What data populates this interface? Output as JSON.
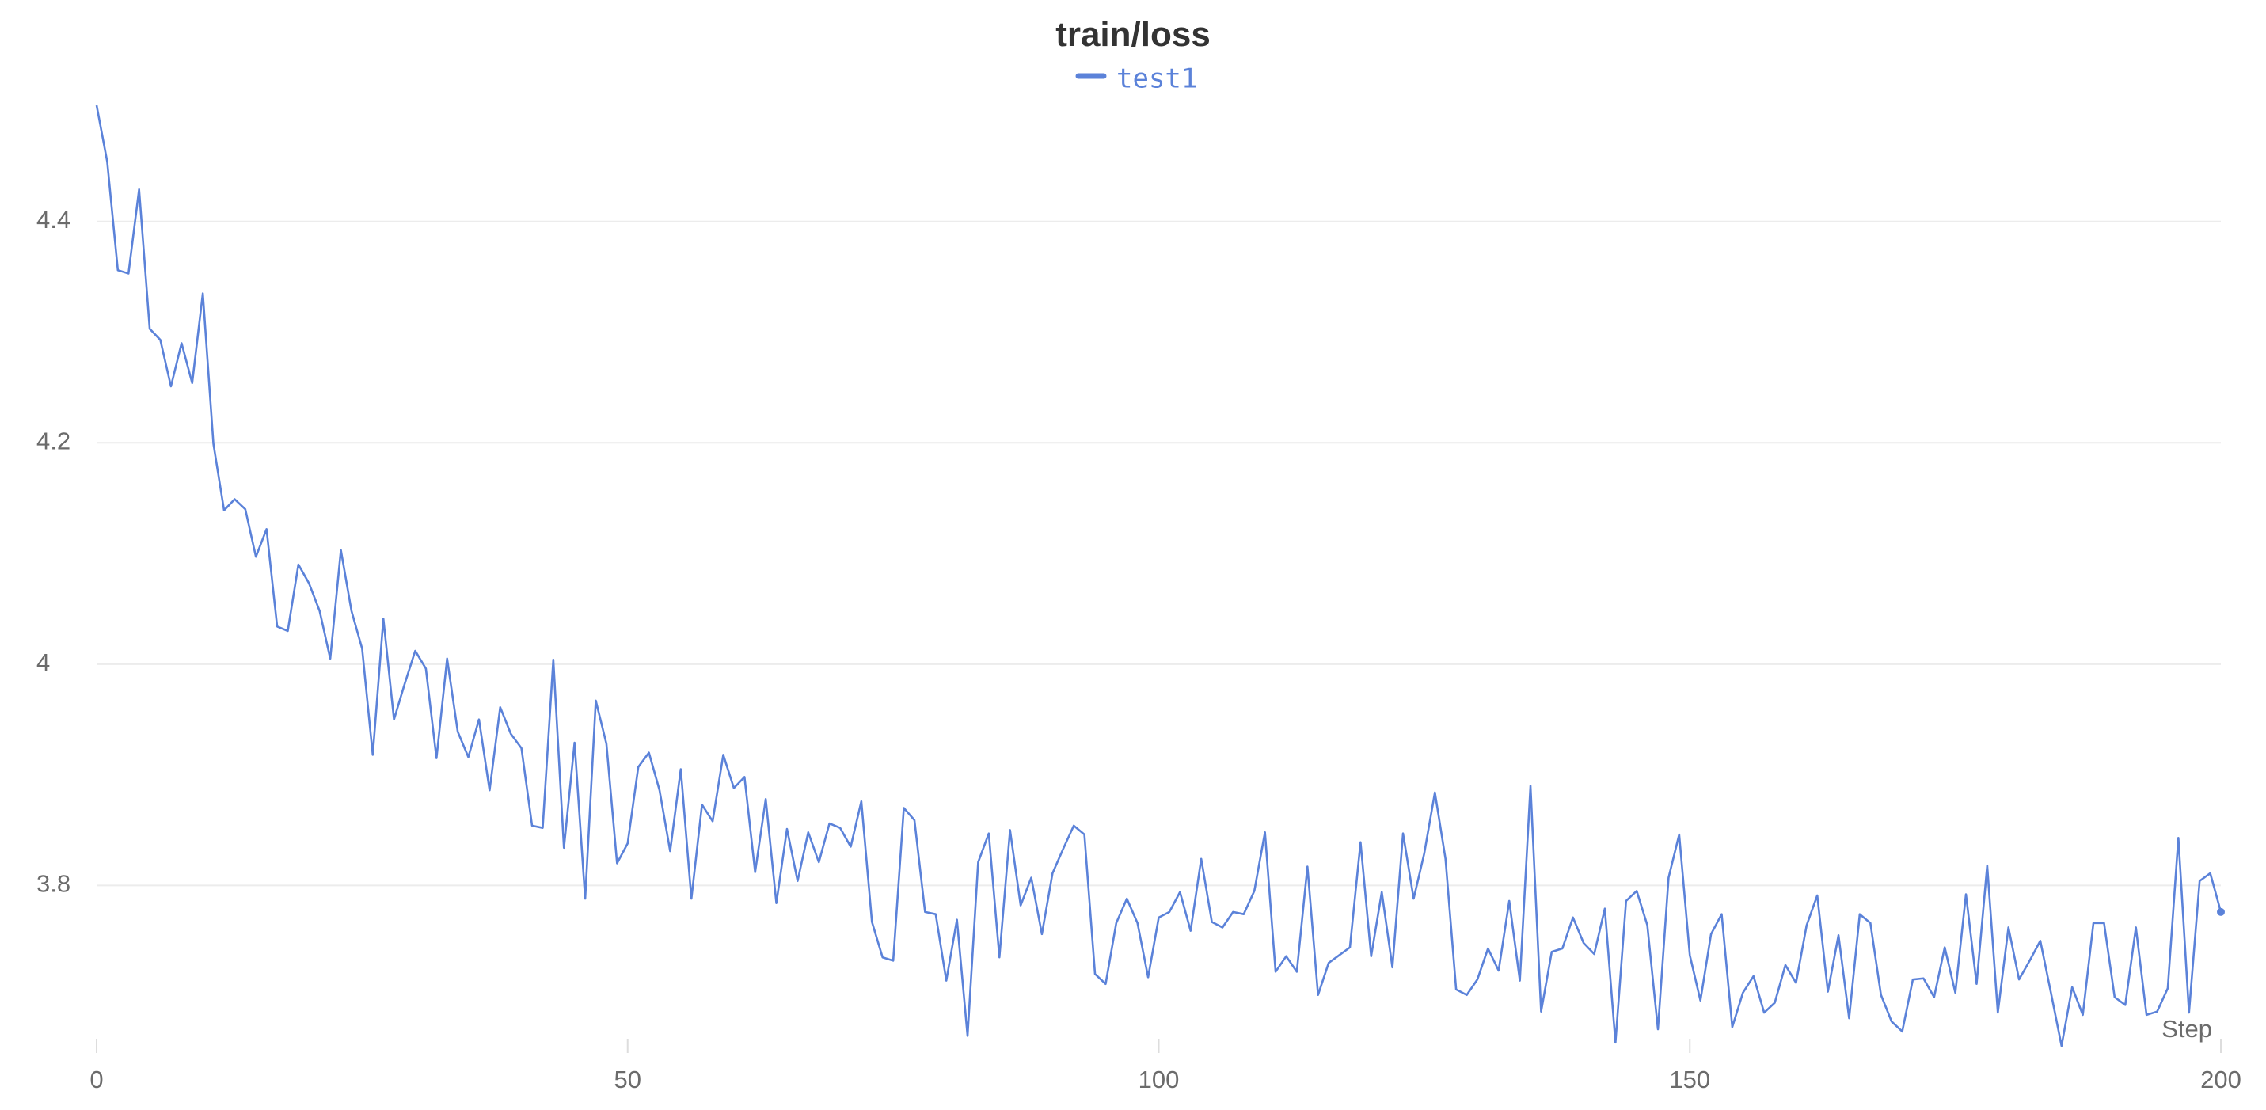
{
  "chart_data": {
    "type": "line",
    "title": "train/loss",
    "x_label": "Step",
    "x": [
      0,
      1,
      2,
      3,
      4,
      5,
      6,
      7,
      8,
      9,
      10,
      11,
      12,
      13,
      14,
      15,
      16,
      17,
      18,
      19,
      20,
      21,
      22,
      23,
      24,
      25,
      26,
      27,
      28,
      29,
      30,
      31,
      32,
      33,
      34,
      35,
      36,
      37,
      38,
      39,
      40,
      41,
      42,
      43,
      44,
      45,
      46,
      47,
      48,
      49,
      50,
      51,
      52,
      53,
      54,
      55,
      56,
      57,
      58,
      59,
      60,
      61,
      62,
      63,
      64,
      65,
      66,
      67,
      68,
      69,
      70,
      71,
      72,
      73,
      74,
      75,
      76,
      77,
      78,
      79,
      80,
      81,
      82,
      83,
      84,
      85,
      86,
      87,
      88,
      89,
      90,
      91,
      92,
      93,
      94,
      95,
      96,
      97,
      98,
      99,
      100,
      101,
      102,
      103,
      104,
      105,
      106,
      107,
      108,
      109,
      110,
      111,
      112,
      113,
      114,
      115,
      116,
      117,
      118,
      119,
      120,
      121,
      122,
      123,
      124,
      125,
      126,
      127,
      128,
      129,
      130,
      131,
      132,
      133,
      134,
      135,
      136,
      137,
      138,
      139,
      140,
      141,
      142,
      143,
      144,
      145,
      146,
      147,
      148,
      149,
      150,
      151,
      152,
      153,
      154,
      155,
      156,
      157,
      158,
      159,
      160,
      161,
      162,
      163,
      164,
      165,
      166,
      167,
      168,
      169,
      170,
      171,
      172,
      173,
      174,
      175,
      176,
      177,
      178,
      179,
      180,
      181,
      182,
      183,
      184,
      185,
      186,
      187,
      188,
      189,
      190,
      191,
      192,
      193,
      194,
      195,
      196,
      197,
      198,
      199,
      200
    ],
    "series": [
      {
        "name": "test1",
        "color": "#5b82d9",
        "values": [
          4.505,
          4.454,
          4.356,
          4.353,
          4.429,
          4.303,
          4.293,
          4.251,
          4.29,
          4.254,
          4.335,
          4.199,
          4.139,
          4.149,
          4.14,
          4.097,
          4.122,
          4.034,
          4.03,
          4.09,
          4.073,
          4.048,
          4.005,
          4.103,
          4.048,
          4.014,
          3.918,
          4.041,
          3.95,
          3.982,
          4.012,
          3.996,
          3.915,
          4.005,
          3.939,
          3.916,
          3.95,
          3.886,
          3.961,
          3.937,
          3.924,
          3.854,
          3.852,
          4.004,
          3.834,
          3.929,
          3.788,
          3.967,
          3.928,
          3.82,
          3.838,
          3.907,
          3.92,
          3.886,
          3.831,
          3.905,
          3.788,
          3.873,
          3.858,
          3.918,
          3.888,
          3.898,
          3.812,
          3.878,
          3.784,
          3.851,
          3.804,
          3.848,
          3.821,
          3.856,
          3.852,
          3.835,
          3.876,
          3.767,
          3.735,
          3.732,
          3.87,
          3.859,
          3.776,
          3.774,
          3.714,
          3.769,
          3.664,
          3.821,
          3.847,
          3.735,
          3.85,
          3.782,
          3.807,
          3.756,
          3.811,
          3.833,
          3.854,
          3.846,
          3.72,
          3.711,
          3.766,
          3.788,
          3.766,
          3.717,
          3.771,
          3.776,
          3.794,
          3.759,
          3.824,
          3.767,
          3.762,
          3.776,
          3.774,
          3.795,
          3.848,
          3.722,
          3.736,
          3.722,
          3.817,
          3.701,
          3.73,
          3.737,
          3.744,
          3.839,
          3.736,
          3.794,
          3.726,
          3.847,
          3.788,
          3.829,
          3.884,
          3.824,
          3.706,
          3.701,
          3.715,
          3.743,
          3.723,
          3.786,
          3.714,
          3.89,
          3.686,
          3.74,
          3.743,
          3.771,
          3.748,
          3.738,
          3.779,
          3.658,
          3.786,
          3.795,
          3.764,
          3.67,
          3.807,
          3.846,
          3.737,
          3.696,
          3.756,
          3.774,
          3.672,
          3.703,
          3.718,
          3.685,
          3.694,
          3.728,
          3.712,
          3.764,
          3.791,
          3.704,
          3.755,
          3.68,
          3.774,
          3.766,
          3.701,
          3.677,
          3.668,
          3.715,
          3.716,
          3.699,
          3.744,
          3.703,
          3.792,
          3.711,
          3.818,
          3.685,
          3.762,
          3.715,
          3.732,
          3.75,
          3.703,
          3.655,
          3.708,
          3.683,
          3.766,
          3.766,
          3.699,
          3.692,
          3.762,
          3.683,
          3.686,
          3.707,
          3.843,
          3.685,
          3.804,
          3.811,
          3.776
        ]
      }
    ],
    "xlim": [
      0,
      200
    ],
    "xticks": [
      0,
      50,
      100,
      150,
      200
    ],
    "ylim": [
      3.65,
      4.51
    ],
    "yticks": [
      3.8,
      4,
      4.2,
      4.4
    ],
    "grid": true
  }
}
